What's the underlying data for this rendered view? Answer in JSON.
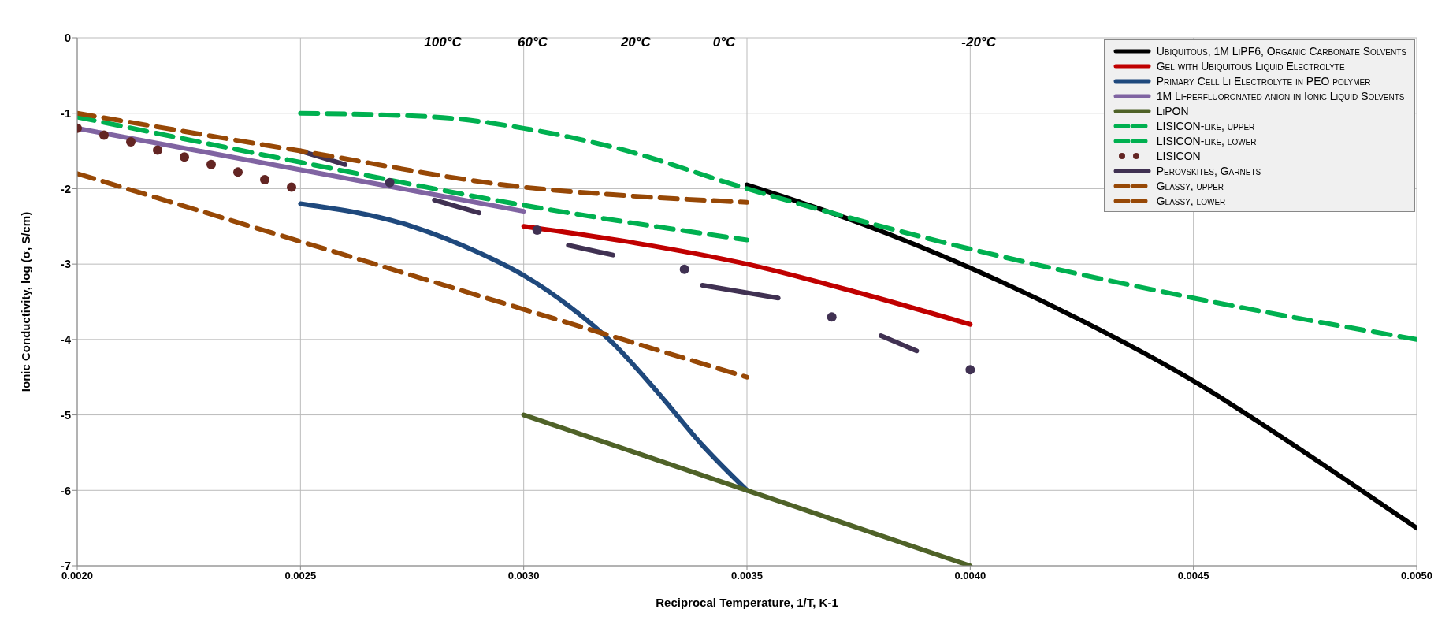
{
  "chart_data": {
    "type": "line",
    "xlabel": "Reciprocal Temperature, 1/T, K-1",
    "ylabel": "Ionic Conductivity, log (σ, S/cm)",
    "xlim": [
      0.002,
      0.005
    ],
    "xticks": [
      {
        "value": 0.002,
        "label": "0.0020"
      },
      {
        "value": 0.0025,
        "label": "0.0025"
      },
      {
        "value": 0.003,
        "label": "0.0030"
      },
      {
        "value": 0.0035,
        "label": "0.0035"
      },
      {
        "value": 0.004,
        "label": "0.0040"
      },
      {
        "value": 0.0045,
        "label": "0.0045"
      },
      {
        "value": 0.005,
        "label": "0.0050"
      }
    ],
    "ylim": [
      -7,
      0
    ],
    "yticks": [
      -7,
      -6,
      -5,
      -4,
      -3,
      -2,
      -1,
      0
    ],
    "grid": true,
    "legend": "top right",
    "annotations": [
      "100°C",
      "60°C",
      "20°C",
      "0°C",
      "-20°C"
    ],
    "series": [
      {
        "name": "Ubiquitous, 1M LiPF6, Organic Carbonate Solvents",
        "color": "#000000",
        "line_style": "solid",
        "x": [
          0.0035,
          0.00375,
          0.004,
          0.00425,
          0.0045,
          0.00475,
          0.005
        ],
        "values": [
          -1.95,
          -2.45,
          -3.05,
          -3.75,
          -4.55,
          -5.5,
          -6.5
        ]
      },
      {
        "name": "Gel with Ubiquitous Liquid Electrolyte",
        "color": "#c00000",
        "line_style": "solid",
        "x": [
          0.003,
          0.00325,
          0.0035,
          0.00375,
          0.004
        ],
        "values": [
          -2.5,
          -2.72,
          -3.0,
          -3.38,
          -3.8
        ]
      },
      {
        "name": "Primary Cell Li Electrolyte in PEO polymer",
        "color": "#1f497d",
        "line_style": "solid",
        "x": [
          0.0025,
          0.00275,
          0.0029,
          0.003,
          0.0031,
          0.0032,
          0.0033,
          0.0034,
          0.0035
        ],
        "values": [
          -2.2,
          -2.5,
          -2.85,
          -3.15,
          -3.55,
          -4.05,
          -4.7,
          -5.4,
          -6.0
        ]
      },
      {
        "name": "1M Li-perfluoronated anion in Ionic Liquid Solvents",
        "color": "#8064a2",
        "line_style": "solid",
        "x": [
          0.002,
          0.0025,
          0.003
        ],
        "values": [
          -1.2,
          -1.75,
          -2.3
        ]
      },
      {
        "name": "LiPON",
        "color": "#4f6228",
        "line_style": "solid",
        "x": [
          0.003,
          0.0035,
          0.004
        ],
        "values": [
          -5.0,
          -6.0,
          -7.0
        ]
      },
      {
        "name": "LISICON-like, upper",
        "color": "#00b050",
        "line_style": "dashed",
        "x": [
          0.0025,
          0.0028,
          0.003,
          0.0032,
          0.0035,
          0.004,
          0.0045,
          0.005
        ],
        "values": [
          -1.0,
          -1.05,
          -1.2,
          -1.45,
          -2.0,
          -2.8,
          -3.45,
          -4.0
        ]
      },
      {
        "name": "LISICON-like, lower",
        "color": "#00b050",
        "line_style": "dashed",
        "x": [
          0.002,
          0.0025,
          0.003,
          0.0035
        ],
        "values": [
          -1.05,
          -1.65,
          -2.22,
          -2.68
        ]
      },
      {
        "name": "LISICON",
        "type": "scatter",
        "color": "#632523",
        "x": [
          0.002,
          0.00206,
          0.00212,
          0.00218,
          0.00224,
          0.0023,
          0.00236,
          0.00242,
          0.00248
        ],
        "values": [
          -1.2,
          -1.29,
          -1.38,
          -1.49,
          -1.58,
          -1.68,
          -1.78,
          -1.88,
          -1.98
        ]
      },
      {
        "name": "Perovskites, Garnets",
        "color": "#403152",
        "line_style": "solid",
        "x": [
          0.0025,
          0.0026,
          0.0027,
          0.0028,
          0.0029,
          0.003,
          0.0031,
          0.0032,
          0.0033,
          0.0034,
          0.00357,
          0.0037,
          0.0038,
          0.00388
        ],
        "values": [
          -1.5,
          -1.68,
          null,
          -2.15,
          -2.32,
          null,
          -2.75,
          -2.88,
          null,
          -3.28,
          -3.45,
          null,
          -3.95,
          -4.15
        ]
      },
      {
        "type": "scatter",
        "color": "#403152",
        "x": [
          0.0027,
          0.00303,
          0.00336,
          0.00369,
          0.004
        ],
        "values": [
          -1.92,
          -2.55,
          -3.07,
          -3.7,
          -4.4
        ]
      },
      {
        "name": "Glassy, upper",
        "color": "#974806",
        "line_style": "dashed",
        "x": [
          0.002,
          0.0025,
          0.003,
          0.0032,
          0.0035
        ],
        "values": [
          -1.0,
          -1.5,
          -1.98,
          -2.08,
          -2.18
        ]
      },
      {
        "name": "Glassy, lower",
        "color": "#974806",
        "line_style": "dashed",
        "x": [
          0.002,
          0.0025,
          0.003,
          0.0035
        ],
        "values": [
          -1.8,
          -2.7,
          -3.6,
          -4.5
        ]
      }
    ]
  }
}
